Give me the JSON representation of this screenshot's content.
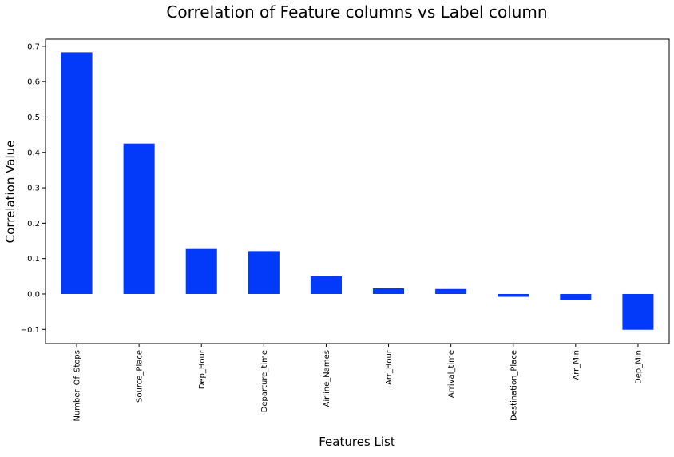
{
  "chart_data": {
    "type": "bar",
    "title": "Correlation of Feature columns vs Label column",
    "xlabel": "Features List",
    "ylabel": "Correlation Value",
    "categories": [
      "Number_Of_Stops",
      "Source_Place",
      "Dep_Hour",
      "Departure_time",
      "Airline_Names",
      "Arr_Hour",
      "Arrival_time",
      "Destination_Place",
      "Arr_Min",
      "Dep_Min"
    ],
    "values": [
      0.683,
      0.425,
      0.127,
      0.121,
      0.05,
      0.016,
      0.014,
      -0.008,
      -0.017,
      -0.101
    ],
    "ylim": [
      -0.14,
      0.72
    ],
    "yticks": [
      -0.1,
      0.0,
      0.1,
      0.2,
      0.3,
      0.4,
      0.5,
      0.6,
      0.7
    ],
    "ytick_labels": [
      "−0.1",
      "0.0",
      "0.1",
      "0.2",
      "0.3",
      "0.4",
      "0.5",
      "0.6",
      "0.7"
    ],
    "bar_color": "#0339f8",
    "grid": false,
    "legend": "none"
  }
}
